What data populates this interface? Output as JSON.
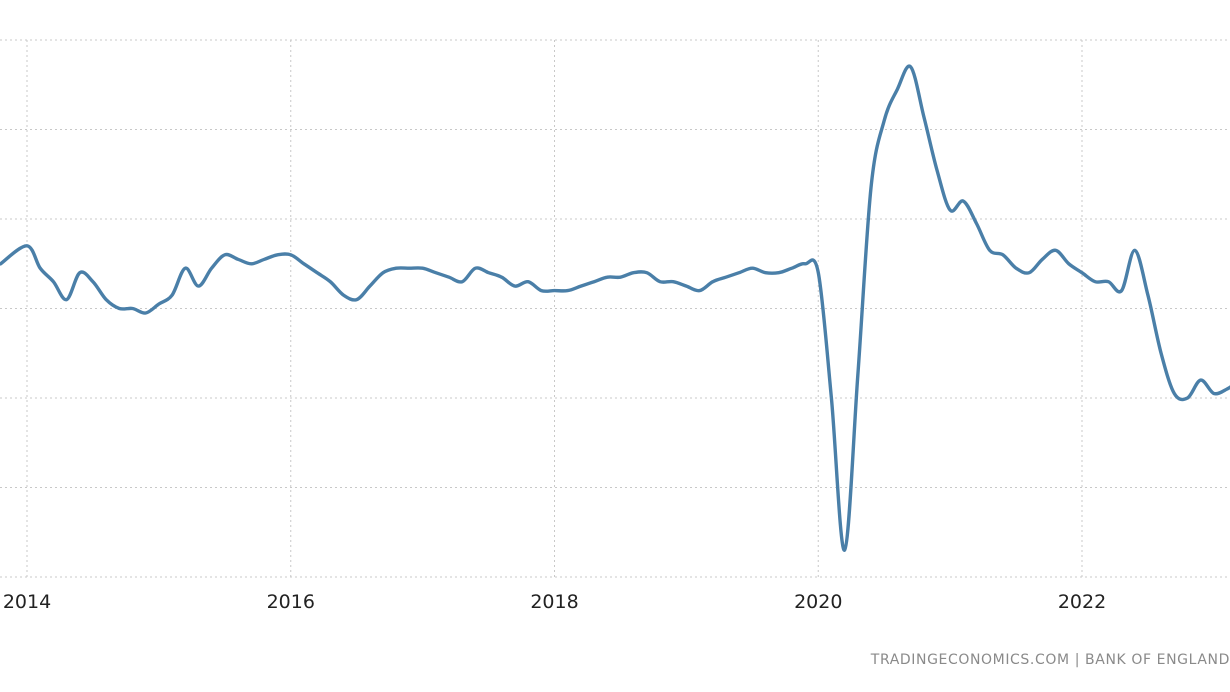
{
  "chart_data": {
    "type": "line",
    "title": "",
    "xlabel": "",
    "ylabel": "",
    "x_tick_labels": [
      "2014",
      "2016",
      "2018",
      "2020",
      "2022"
    ],
    "y_tick_labels": [],
    "grid": true,
    "legend": "none",
    "ylim": [
      -6,
      6
    ],
    "colors": {
      "series": "#4a7fa8",
      "grid": "#c8c8c8"
    },
    "series": [
      {
        "x": [
          2013.8,
          2014.0,
          2014.1,
          2014.2,
          2014.3,
          2014.4,
          2014.5,
          2014.6,
          2014.7,
          2014.8,
          2014.9,
          2015.0,
          2015.1,
          2015.2,
          2015.3,
          2015.4,
          2015.5,
          2015.6,
          2015.7,
          2015.8,
          2015.9,
          2016.0,
          2016.1,
          2016.2,
          2016.3,
          2016.4,
          2016.5,
          2016.6,
          2016.7,
          2016.8,
          2016.9,
          2017.0,
          2017.1,
          2017.2,
          2017.3,
          2017.4,
          2017.5,
          2017.6,
          2017.7,
          2017.8,
          2017.9,
          2018.0,
          2018.1,
          2018.2,
          2018.3,
          2018.4,
          2018.5,
          2018.6,
          2018.7,
          2018.8,
          2018.9,
          2019.0,
          2019.1,
          2019.2,
          2019.3,
          2019.4,
          2019.5,
          2019.6,
          2019.7,
          2019.8,
          2019.9,
          2020.0,
          2020.1,
          2020.2,
          2020.3,
          2020.4,
          2020.5,
          2020.6,
          2020.7,
          2020.8,
          2020.9,
          2021.0,
          2021.1,
          2021.2,
          2021.3,
          2021.4,
          2021.5,
          2021.6,
          2021.7,
          2021.8,
          2021.9,
          2022.0,
          2022.1,
          2022.2,
          2022.3,
          2022.4,
          2022.5,
          2022.6,
          2022.7,
          2022.8,
          2022.9,
          2023.0,
          2023.1,
          2023.15
        ],
        "values": [
          1.0,
          1.4,
          0.9,
          0.6,
          0.2,
          0.8,
          0.6,
          0.2,
          0.0,
          0.0,
          -0.1,
          0.1,
          0.3,
          0.9,
          0.5,
          0.9,
          1.2,
          1.1,
          1.0,
          1.1,
          1.2,
          1.2,
          1.0,
          0.8,
          0.6,
          0.3,
          0.2,
          0.5,
          0.8,
          0.9,
          0.9,
          0.9,
          0.8,
          0.7,
          0.6,
          0.9,
          0.8,
          0.7,
          0.5,
          0.6,
          0.4,
          0.4,
          0.4,
          0.5,
          0.6,
          0.7,
          0.7,
          0.8,
          0.8,
          0.6,
          0.6,
          0.5,
          0.4,
          0.6,
          0.7,
          0.8,
          0.9,
          0.8,
          0.8,
          0.9,
          1.0,
          0.8,
          -2.0,
          -5.4,
          -1.5,
          2.7,
          4.2,
          4.9,
          5.4,
          4.3,
          3.1,
          2.2,
          2.4,
          1.9,
          1.3,
          1.2,
          0.9,
          0.8,
          1.1,
          1.3,
          1.0,
          0.8,
          0.6,
          0.6,
          0.4,
          1.3,
          0.3,
          -1.0,
          -1.9,
          -2.0,
          -1.6,
          -1.9,
          -1.8,
          -1.7
        ]
      }
    ]
  },
  "source_text": "TRADINGECONOMICS.COM  |  BANK OF ENGLAND"
}
